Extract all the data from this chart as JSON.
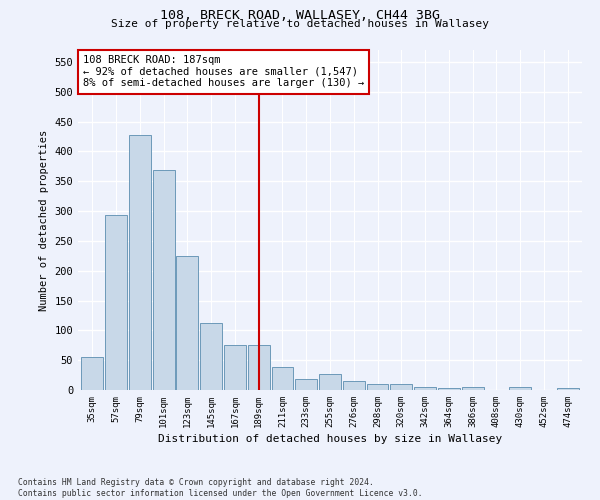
{
  "title": "108, BRECK ROAD, WALLASEY, CH44 3BG",
  "subtitle": "Size of property relative to detached houses in Wallasey",
  "xlabel": "Distribution of detached houses by size in Wallasey",
  "ylabel": "Number of detached properties",
  "categories": [
    "35sqm",
    "57sqm",
    "79sqm",
    "101sqm",
    "123sqm",
    "145sqm",
    "167sqm",
    "189sqm",
    "211sqm",
    "233sqm",
    "255sqm",
    "276sqm",
    "298sqm",
    "320sqm",
    "342sqm",
    "364sqm",
    "386sqm",
    "408sqm",
    "430sqm",
    "452sqm",
    "474sqm"
  ],
  "values": [
    55,
    293,
    428,
    368,
    225,
    113,
    76,
    76,
    38,
    18,
    27,
    15,
    10,
    10,
    5,
    4,
    5,
    0,
    5,
    0,
    3
  ],
  "bar_color": "#c8d8e8",
  "bar_edge_color": "#5b8db0",
  "vline_x_index": 7,
  "vline_color": "#cc0000",
  "annotation_text": "108 BRECK ROAD: 187sqm\n← 92% of detached houses are smaller (1,547)\n8% of semi-detached houses are larger (130) →",
  "annotation_box_color": "#ffffff",
  "annotation_box_edge": "#cc0000",
  "ylim": [
    0,
    570
  ],
  "yticks": [
    0,
    50,
    100,
    150,
    200,
    250,
    300,
    350,
    400,
    450,
    500,
    550
  ],
  "background_color": "#eef2fc",
  "grid_color": "#ffffff",
  "footnote": "Contains HM Land Registry data © Crown copyright and database right 2024.\nContains public sector information licensed under the Open Government Licence v3.0."
}
